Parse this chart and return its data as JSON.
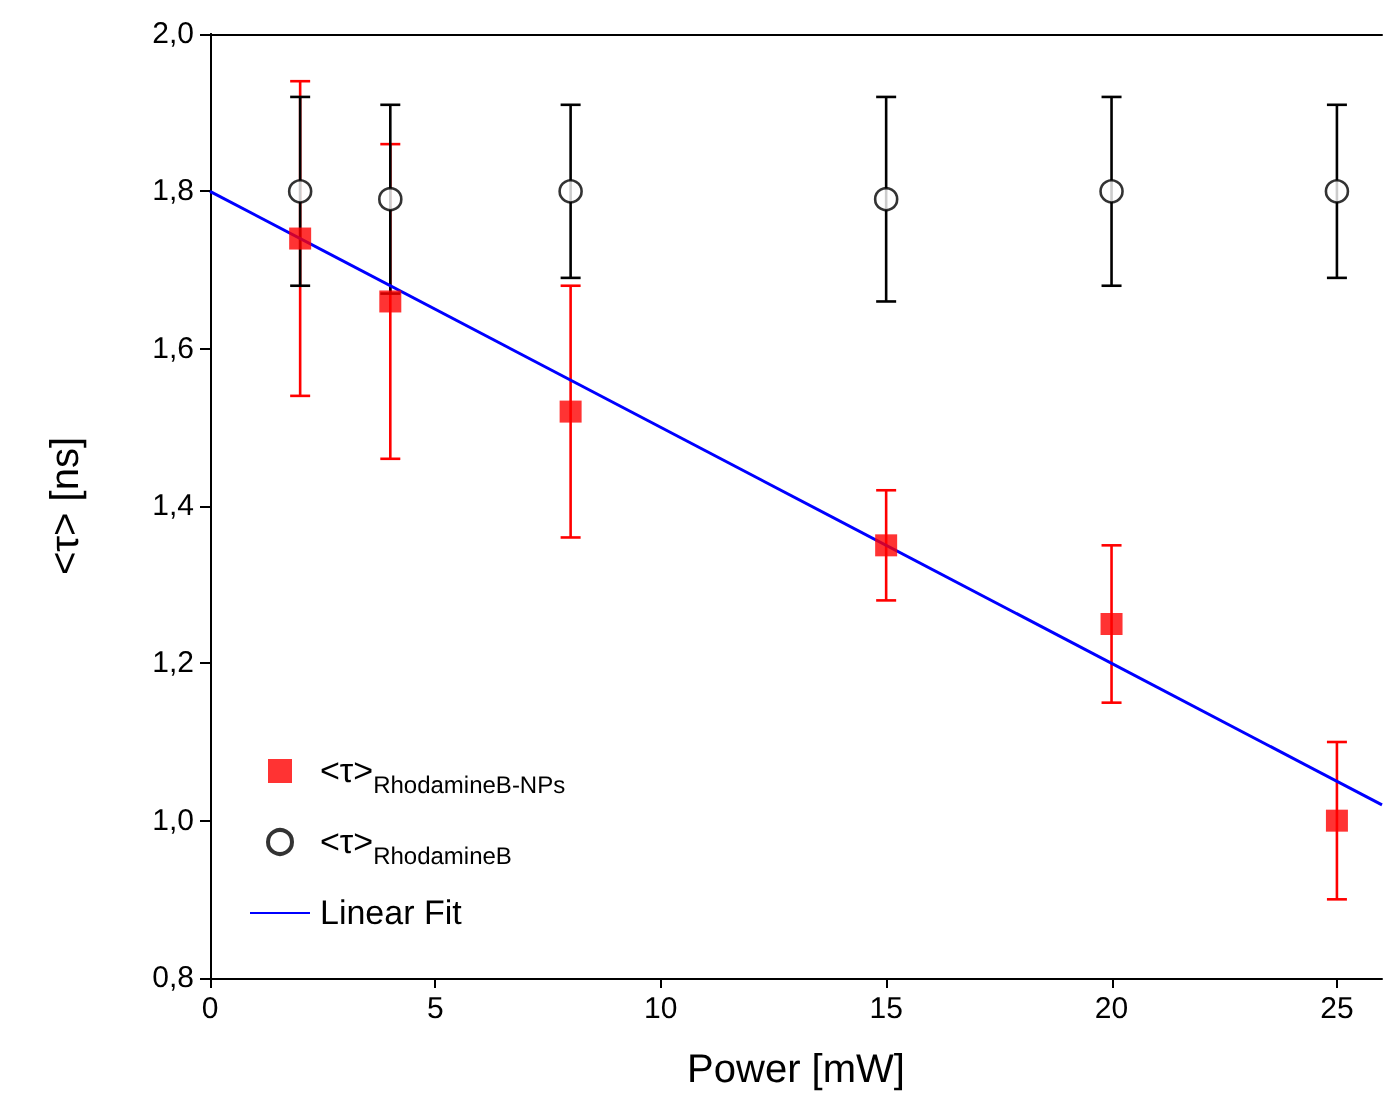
{
  "chart_data": {
    "type": "scatter",
    "xlabel": "Power [mW]",
    "ylabel": "<τ> [ns]",
    "xlim": [
      0,
      26
    ],
    "xticks": [
      0,
      5,
      10,
      15,
      20,
      25
    ],
    "ylim": [
      0.8,
      2.0
    ],
    "yticks": [
      {
        "value": 0.8,
        "label": "0,8"
      },
      {
        "value": 1.0,
        "label": "1,0"
      },
      {
        "value": 1.2,
        "label": "1,2"
      },
      {
        "value": 1.4,
        "label": "1,4"
      },
      {
        "value": 1.6,
        "label": "1,6"
      },
      {
        "value": 1.8,
        "label": "1,8"
      },
      {
        "value": 2.0,
        "label": "2,0"
      }
    ],
    "grid": false,
    "legend": "bottom left",
    "series": [
      {
        "name": "<τ>$_{RhodamineB-NPs}$",
        "marker": "square",
        "color": "#ff0000",
        "x": [
          2,
          4,
          8,
          15,
          20,
          25
        ],
        "values": [
          1.74,
          1.66,
          1.52,
          1.35,
          1.25,
          1.0
        ],
        "errors": [
          0.2,
          0.2,
          0.16,
          0.07,
          0.1,
          0.1
        ]
      },
      {
        "name": "<τ>$_{RhodamineB}$",
        "marker": "circle",
        "color": "#000000",
        "x": [
          2,
          4,
          8,
          15,
          20,
          25
        ],
        "values": [
          1.8,
          1.79,
          1.8,
          1.79,
          1.8,
          1.8
        ],
        "errors": [
          0.12,
          0.12,
          0.11,
          0.13,
          0.12,
          0.11
        ]
      },
      {
        "name": "Linear Fit",
        "type": "line",
        "marker": "none",
        "line_style": "solid",
        "color": "#0000ff",
        "x": [
          0,
          26
        ],
        "values": [
          1.8,
          1.02
        ]
      }
    ]
  }
}
